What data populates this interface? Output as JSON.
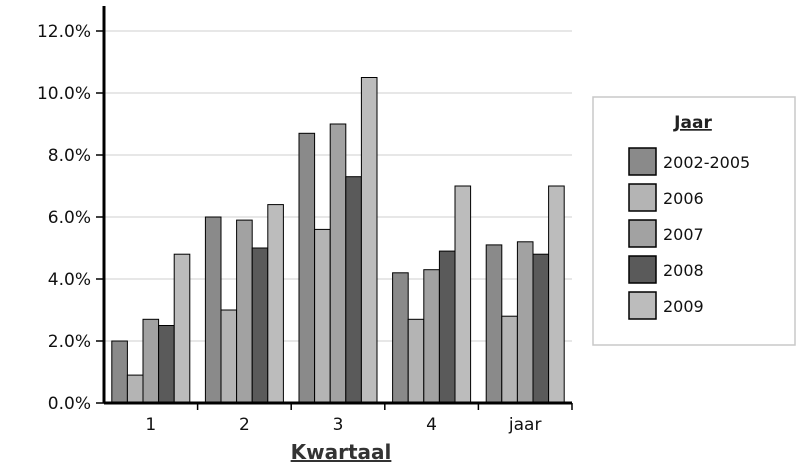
{
  "chart_data": {
    "type": "bar",
    "categories": [
      "1",
      "2",
      "3",
      "4",
      "jaar"
    ],
    "series": [
      {
        "name": "2002-2005",
        "color": "#8a8a8a",
        "values": [
          2.0,
          6.0,
          8.7,
          4.2,
          5.1
        ]
      },
      {
        "name": "2006",
        "color": "#b4b4b4",
        "values": [
          0.9,
          3.0,
          5.6,
          2.7,
          2.8
        ]
      },
      {
        "name": "2007",
        "color": "#a2a2a2",
        "values": [
          2.7,
          5.9,
          9.0,
          4.3,
          5.2
        ]
      },
      {
        "name": "2008",
        "color": "#5a5a5a",
        "values": [
          2.5,
          5.0,
          7.3,
          4.9,
          4.8
        ]
      },
      {
        "name": "2009",
        "color": "#bcbcbc",
        "values": [
          4.8,
          6.4,
          10.5,
          7.0,
          7.0
        ]
      }
    ],
    "yticks": [
      "0.0%",
      "2.0%",
      "4.0%",
      "6.0%",
      "8.0%",
      "10.0%",
      "12.0%"
    ],
    "ylim": [
      0,
      12
    ],
    "xlabel": "Kwartaal",
    "legend_title": "Jaar",
    "legend_position": "right",
    "grid": true
  }
}
